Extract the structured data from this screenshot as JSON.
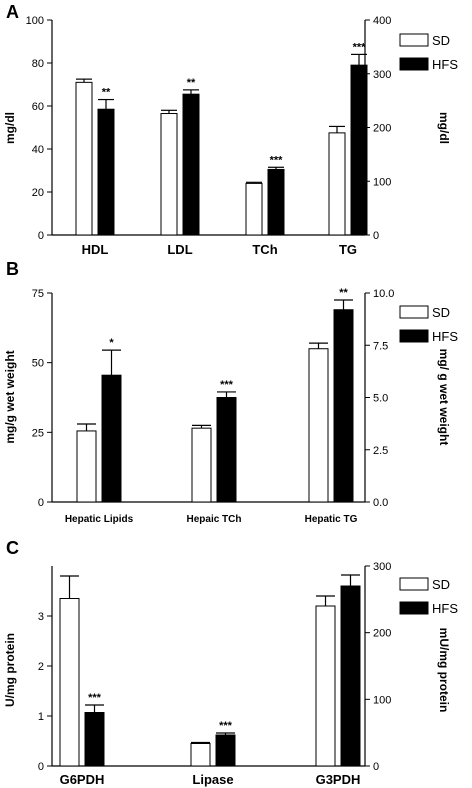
{
  "colors": {
    "SD": "#ffffff",
    "HFS": "#000000",
    "stroke": "#000000"
  },
  "chart_data": [
    {
      "panel": "A",
      "type": "bar",
      "categories": [
        "HDL",
        "LDL",
        "TCh",
        "TG"
      ],
      "legend": [
        "SD",
        "HFS"
      ],
      "legend_position": "top-right",
      "left_axis": {
        "label": "mg/dl",
        "range": [
          0,
          100
        ],
        "ticks": [
          0,
          20,
          40,
          60,
          80,
          100
        ]
      },
      "right_axis": {
        "label": "mg/dl",
        "range": [
          0,
          400
        ],
        "ticks": [
          0,
          100,
          200,
          300,
          400
        ]
      },
      "series": [
        {
          "name": "SD",
          "values": [
            71,
            56.5,
            24,
            47.5
          ],
          "errors": [
            1.5,
            1.5,
            0.5,
            3
          ]
        },
        {
          "name": "HFS",
          "values": [
            58.5,
            65.5,
            30.5,
            79
          ],
          "errors": [
            4.5,
            2,
            1,
            5
          ]
        }
      ],
      "value_axis_note": "TG values plotted on left scale (right scale = left x 4)",
      "significance": [
        "",
        "",
        "",
        ""
      ],
      "significance_hfs": [
        "**",
        "**",
        "***",
        "***"
      ]
    },
    {
      "panel": "B",
      "type": "bar",
      "categories": [
        "Hepatic Lipids",
        "Hepaic TCh",
        "Hepatic TG"
      ],
      "legend": [
        "SD",
        "HFS"
      ],
      "legend_position": "top-right",
      "left_axis": {
        "label": "mg/g wet weight",
        "range": [
          0,
          75
        ],
        "ticks": [
          0,
          25,
          50,
          75
        ]
      },
      "right_axis": {
        "label": "mg/ g wet weight",
        "range": [
          0,
          10
        ],
        "ticks": [
          "0.0",
          "2.5",
          "5.0",
          "7.5",
          "10.0"
        ]
      },
      "series": [
        {
          "name": "SD",
          "values": [
            25.5,
            26.5,
            55
          ],
          "errors": [
            2.5,
            1,
            2
          ]
        },
        {
          "name": "HFS",
          "values": [
            45.5,
            37.5,
            69
          ],
          "errors": [
            9,
            2,
            3.5
          ]
        }
      ],
      "significance_hfs": [
        "*",
        "***",
        "**"
      ]
    },
    {
      "panel": "C",
      "type": "bar",
      "categories": [
        "G6PDH",
        "Lipase",
        "G3PDH"
      ],
      "legend": [
        "SD",
        "HFS"
      ],
      "legend_position": "top-right",
      "left_axis": {
        "label": "U/mg protein",
        "range": [
          0,
          4
        ],
        "ticks": [
          0,
          1,
          2,
          3
        ]
      },
      "right_axis": {
        "label": "mU/mg protein",
        "range": [
          0,
          300
        ],
        "ticks": [
          0,
          100,
          200,
          300
        ]
      },
      "series": [
        {
          "name": "SD",
          "values": [
            3.35,
            0.45,
            3.2
          ],
          "errors": [
            0.45,
            0.02,
            0.2
          ]
        },
        {
          "name": "HFS",
          "values": [
            1.07,
            0.62,
            3.6
          ],
          "errors": [
            0.15,
            0.04,
            0.22
          ]
        }
      ],
      "significance_hfs": [
        "***",
        "***",
        ""
      ]
    }
  ]
}
